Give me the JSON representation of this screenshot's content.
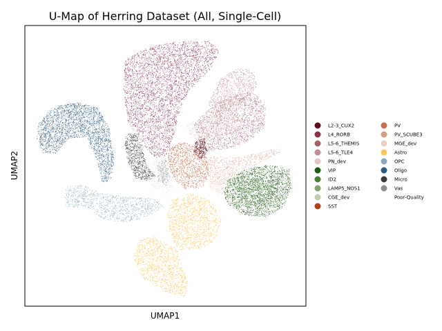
{
  "chart_data": {
    "type": "scatter",
    "title": "U-Map of Herring Dataset (All, Single-Cell)",
    "xlabel": "UMAP1",
    "ylabel": "UMAP2",
    "grid": false,
    "legend_placement": "right",
    "legend": [
      {
        "name": "L2-3_CUX2",
        "color": "#5c0a1c"
      },
      {
        "name": "L4_RORB",
        "color": "#8a3345"
      },
      {
        "name": "L5-6_THEMIS",
        "color": "#a4626d"
      },
      {
        "name": "L5-6_TLE4",
        "color": "#bf8f95"
      },
      {
        "name": "PN_dev",
        "color": "#e1c4c6"
      },
      {
        "name": "VIP",
        "color": "#1e5a0f"
      },
      {
        "name": "ID2",
        "color": "#4a7d36"
      },
      {
        "name": "LAMP5_NOS1",
        "color": "#80a46b"
      },
      {
        "name": "CGE_dev",
        "color": "#bccfb2"
      },
      {
        "name": "SST",
        "color": "#b1411c"
      },
      {
        "name": "PV",
        "color": "#c4704e"
      },
      {
        "name": "PV_SCUBE3",
        "color": "#d6a088"
      },
      {
        "name": "MGE_dev",
        "color": "#ecd0c3"
      },
      {
        "name": "Astro",
        "color": "#fcc65a"
      },
      {
        "name": "OPC",
        "color": "#8aa9bd"
      },
      {
        "name": "Oligo",
        "color": "#2c5c82"
      },
      {
        "name": "Micro",
        "color": "#3c3c3c"
      },
      {
        "name": "Vas",
        "color": "#8e8e8e"
      },
      {
        "name": "Poor-Quality",
        "color": "#c9c9c9"
      }
    ]
  }
}
